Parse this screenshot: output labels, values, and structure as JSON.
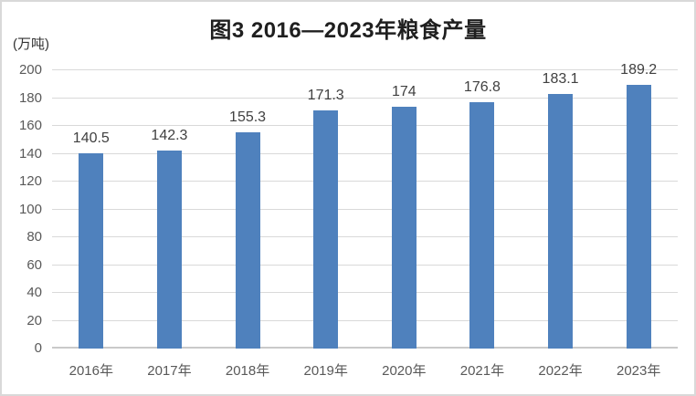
{
  "chart_data": {
    "type": "bar",
    "title": "图3 2016—2023年粮食产量",
    "unit_label": "(万吨)",
    "categories": [
      "2016年",
      "2017年",
      "2018年",
      "2019年",
      "2020年",
      "2021年",
      "2022年",
      "2023年"
    ],
    "values": [
      140.5,
      142.3,
      155.3,
      171.3,
      174,
      176.8,
      183.1,
      189.2
    ],
    "value_labels": [
      "140.5",
      "142.3",
      "155.3",
      "171.3",
      "174",
      "176.8",
      "183.1",
      "189.2"
    ],
    "ylim": [
      0,
      200
    ],
    "yticks": [
      0,
      20,
      40,
      60,
      80,
      100,
      120,
      140,
      160,
      180,
      200
    ],
    "grid": true,
    "legend": "none",
    "colors": {
      "bar": "#4F81BD",
      "title": "#1f1f1f",
      "value_label": "#404040",
      "tick_label": "#595959",
      "unit_label": "#333333",
      "gridline": "#d9d9d9",
      "axis_line": "#c9c9c9",
      "frame_border": "#d9d9d9"
    }
  }
}
